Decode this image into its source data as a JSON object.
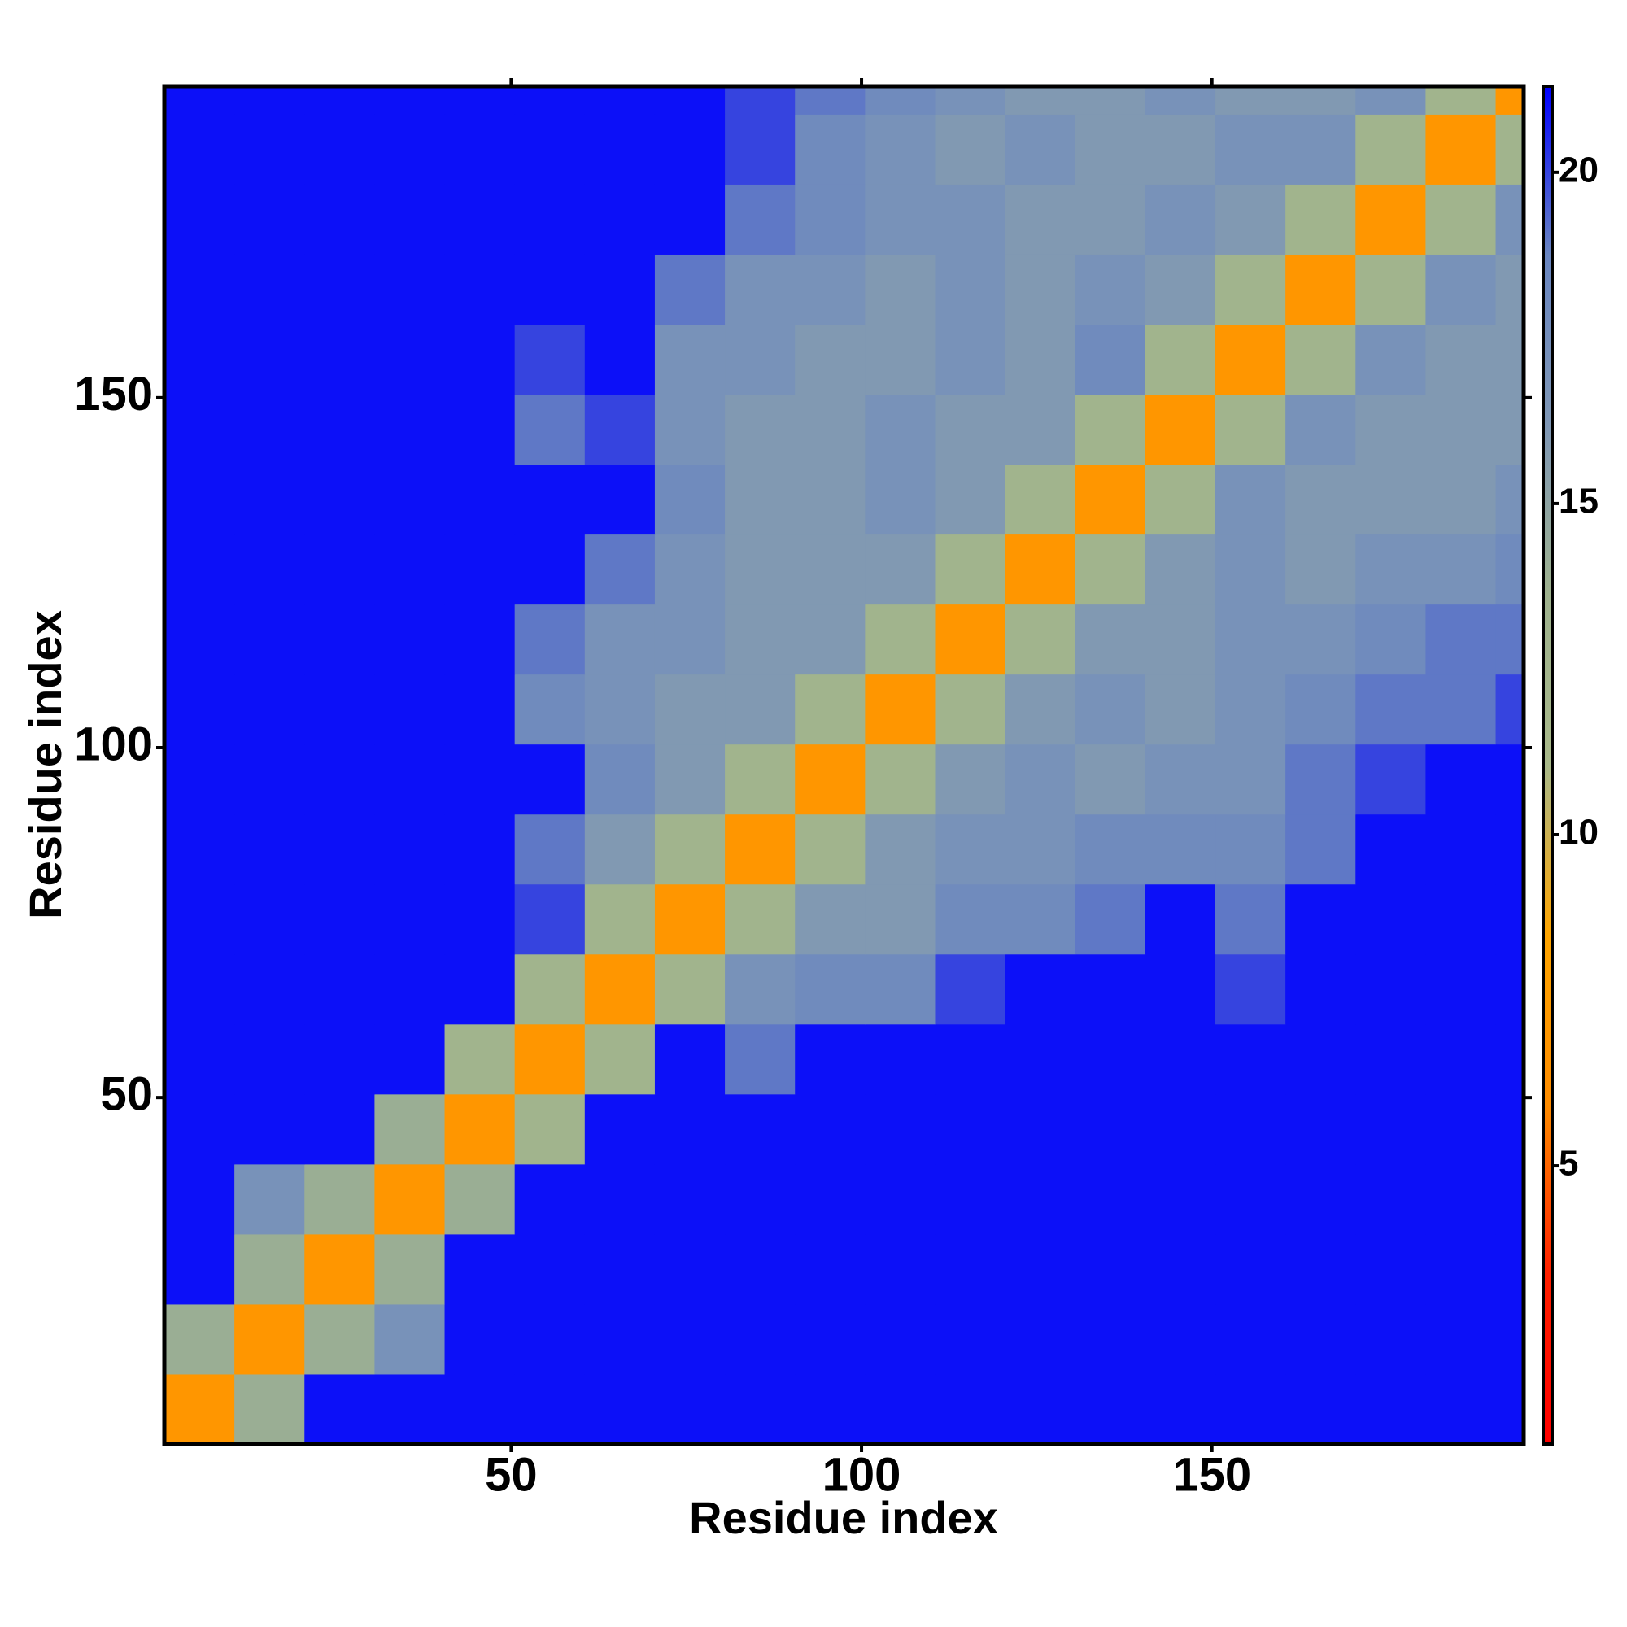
{
  "chart_data": {
    "type": "heatmap",
    "x_label": "Residue index",
    "y_label": "Residue index",
    "xlim": [
      0.5,
      194.5
    ],
    "ylim": [
      0.5,
      194.5
    ],
    "xticks": [
      50,
      100,
      150
    ],
    "yticks": [
      50,
      100,
      150
    ],
    "xbins": [
      0.5,
      10.5,
      20.5,
      30.5,
      40.5,
      50.5,
      60.5,
      70.5,
      80.5,
      90.5,
      100.5,
      110.5,
      120.5,
      130.5,
      140.5,
      150.5,
      160.5,
      170.5,
      180.5,
      190.5,
      194.5
    ],
    "ybins": [
      0.5,
      10.5,
      20.5,
      30.5,
      40.5,
      50.5,
      60.5,
      70.5,
      80.5,
      90.5,
      100.5,
      110.5,
      120.5,
      130.5,
      140.5,
      150.5,
      160.5,
      170.5,
      180.5,
      190.5,
      194.5
    ],
    "z": [
      [
        7,
        14,
        21,
        21,
        21,
        21,
        21,
        21,
        21,
        21,
        21,
        21,
        21,
        21,
        21,
        21,
        21,
        21,
        21,
        21
      ],
      [
        14,
        7,
        14,
        17,
        21,
        21,
        21,
        21,
        21,
        21,
        21,
        21,
        21,
        21,
        21,
        21,
        21,
        21,
        21,
        21
      ],
      [
        21,
        14,
        7,
        14,
        21,
        21,
        21,
        21,
        21,
        21,
        21,
        21,
        21,
        21,
        21,
        21,
        21,
        21,
        21,
        21
      ],
      [
        21,
        17,
        14,
        7,
        14,
        21,
        21,
        21,
        21,
        21,
        21,
        21,
        21,
        21,
        21,
        21,
        21,
        21,
        21,
        21
      ],
      [
        21,
        21,
        21,
        14,
        7,
        13,
        21,
        21,
        21,
        21,
        21,
        21,
        21,
        21,
        21,
        21,
        21,
        21,
        21,
        21
      ],
      [
        21,
        21,
        21,
        21,
        13,
        7,
        13,
        21,
        19,
        21,
        21,
        21,
        21,
        21,
        21,
        21,
        21,
        21,
        21,
        21
      ],
      [
        21,
        21,
        21,
        21,
        21,
        13,
        7,
        13,
        17,
        18,
        18,
        20,
        21,
        21,
        21,
        20,
        21,
        21,
        21,
        21
      ],
      [
        21,
        21,
        21,
        21,
        21,
        20,
        13,
        7,
        13,
        16,
        16,
        18,
        18,
        19,
        21,
        19,
        21,
        21,
        21,
        21
      ],
      [
        21,
        21,
        21,
        21,
        21,
        19,
        16,
        13,
        7,
        13,
        16,
        17,
        17,
        18,
        18,
        18,
        19,
        21,
        21,
        21
      ],
      [
        21,
        21,
        21,
        21,
        21,
        21,
        18,
        16,
        13,
        7,
        13,
        16,
        17,
        16,
        17,
        17,
        19,
        20,
        21,
        21
      ],
      [
        21,
        21,
        21,
        21,
        21,
        18,
        17,
        16,
        16,
        13,
        7,
        13,
        16,
        17,
        16,
        17,
        18,
        19,
        19,
        20
      ],
      [
        21,
        21,
        21,
        21,
        21,
        19,
        17,
        17,
        16,
        16,
        13,
        7,
        13,
        16,
        16,
        17,
        17,
        18,
        19,
        19
      ],
      [
        21,
        21,
        21,
        21,
        21,
        21,
        19,
        17,
        16,
        16,
        16,
        13,
        7,
        13,
        16,
        17,
        16,
        17,
        17,
        18
      ],
      [
        21,
        21,
        21,
        21,
        21,
        21,
        21,
        18,
        16,
        16,
        17,
        16,
        13,
        7,
        13,
        17,
        16,
        16,
        16,
        17
      ],
      [
        21,
        21,
        21,
        21,
        21,
        19,
        20,
        17,
        16,
        16,
        17,
        16,
        16,
        13,
        7,
        13,
        17,
        16,
        16,
        16
      ],
      [
        21,
        21,
        21,
        21,
        21,
        20,
        21,
        17,
        17,
        16,
        16,
        17,
        16,
        18,
        13,
        7,
        13,
        17,
        16,
        16
      ],
      [
        21,
        21,
        21,
        21,
        21,
        21,
        21,
        19,
        17,
        17,
        16,
        17,
        16,
        17,
        16,
        13,
        7,
        13,
        17,
        16
      ],
      [
        21,
        21,
        21,
        21,
        21,
        21,
        21,
        21,
        19,
        18,
        17,
        17,
        16,
        16,
        17,
        16,
        13,
        7,
        13,
        17
      ],
      [
        21,
        21,
        21,
        21,
        21,
        21,
        21,
        21,
        20,
        18,
        17,
        16,
        17,
        16,
        16,
        17,
        17,
        13,
        7,
        13
      ],
      [
        21,
        21,
        21,
        21,
        21,
        21,
        21,
        21,
        20,
        19,
        18,
        17,
        16,
        16,
        17,
        16,
        16,
        17,
        13,
        7
      ]
    ],
    "zlim": [
      0.8,
      21.3
    ],
    "colorbar_ticks": [
      5,
      10,
      15,
      20
    ],
    "colors": [
      "#ff0000",
      "#ff2000",
      "#ff8c00",
      "#ffa500",
      "#a9b98a",
      "#9fb28e",
      "#7f97b5",
      "#6a86c0",
      "#0000ff"
    ]
  }
}
